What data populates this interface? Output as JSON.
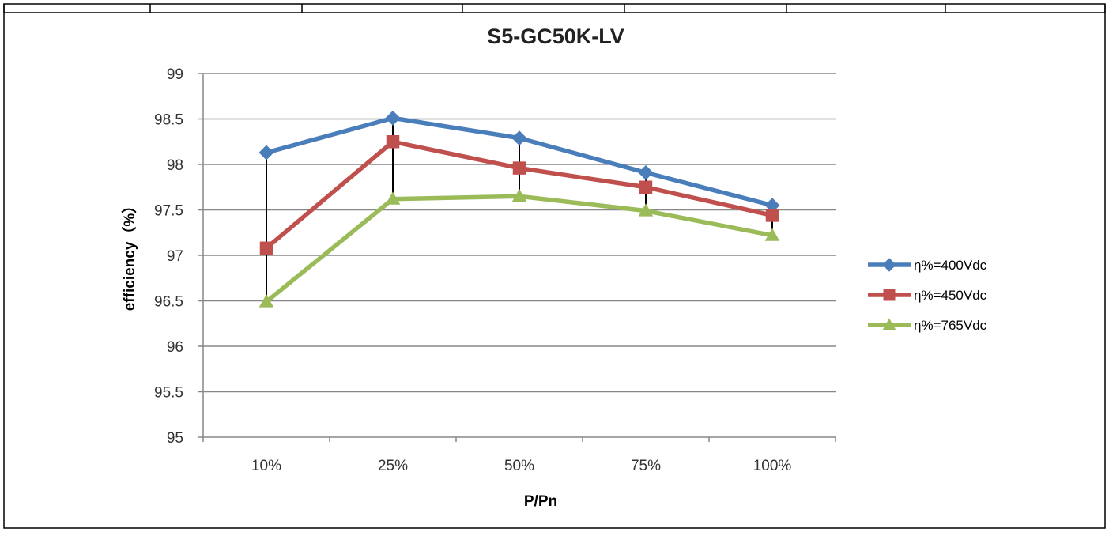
{
  "chart_data": {
    "type": "line",
    "title": "S5-GC50K-LV",
    "xlabel": "P/Pn",
    "ylabel": "efficiency（%）",
    "categories": [
      "10%",
      "25%",
      "50%",
      "75%",
      "100%"
    ],
    "ylim": [
      95,
      99
    ],
    "yticks": [
      "95",
      "95.5",
      "96",
      "96.5",
      "97",
      "97.5",
      "98",
      "98.5",
      "99"
    ],
    "grid": true,
    "legend_position": "right",
    "drop_lines": true,
    "series": [
      {
        "name": "η%=400Vdc",
        "values": [
          98.13,
          98.51,
          98.29,
          97.91,
          97.55
        ],
        "color": "#4a7ebb",
        "marker": "diamond"
      },
      {
        "name": "η%=450Vdc",
        "values": [
          97.08,
          98.25,
          97.96,
          97.75,
          97.44
        ],
        "color": "#c0504d",
        "marker": "square"
      },
      {
        "name": "η%=765Vdc",
        "values": [
          96.49,
          97.62,
          97.65,
          97.49,
          97.22
        ],
        "color": "#9bbb59",
        "marker": "triangle"
      }
    ]
  }
}
